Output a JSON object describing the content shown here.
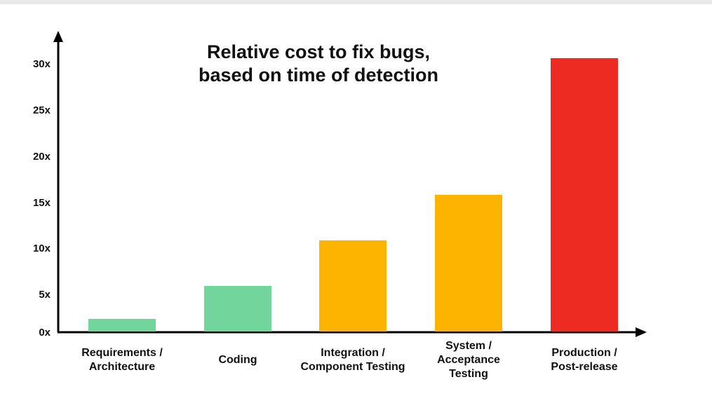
{
  "chart_data": {
    "type": "bar",
    "title": "Relative cost to fix bugs, based on time of detection",
    "title_lines": [
      "Relative cost to fix bugs,",
      "based on time of detection"
    ],
    "categories": [
      "Requirements / Architecture",
      "Coding",
      "Integration / Component Testing",
      "System / Acceptance Testing",
      "Production / Post-release"
    ],
    "category_lines": [
      [
        "Requirements /",
        "Architecture"
      ],
      [
        "Coding"
      ],
      [
        "Integration /",
        "Component Testing"
      ],
      [
        "System /",
        "Acceptance",
        "Testing"
      ],
      [
        "Production /",
        "Post-release"
      ]
    ],
    "values": [
      1,
      5,
      10,
      15,
      30
    ],
    "colors": [
      "#72d69c",
      "#72d69c",
      "#fdb400",
      "#fdb400",
      "#ee2b22"
    ],
    "xlabel": "",
    "ylabel": "",
    "yticks": [
      "0x",
      "5x",
      "10x",
      "15x",
      "20x",
      "25x",
      "30x"
    ],
    "ylim": [
      0,
      30
    ],
    "grid": false,
    "legend": null
  }
}
